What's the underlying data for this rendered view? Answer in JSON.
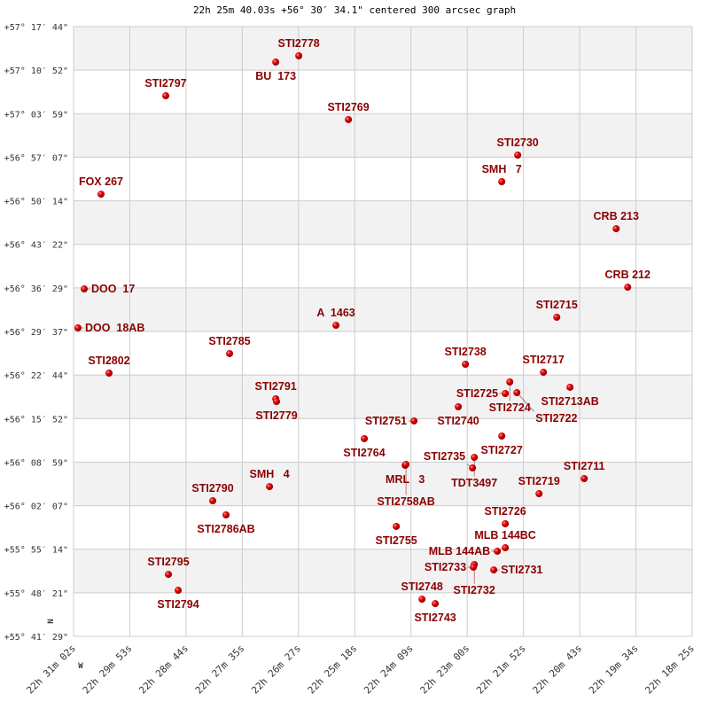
{
  "chart_data": {
    "type": "scatter",
    "title": "22h 25m 40.03s +56° 30′ 34.1\" centered 300 arcsec graph",
    "x_axis": {
      "quantity": "right ascension",
      "range": [
        "22 31 02",
        "22 18 25"
      ],
      "direction": "decreasing to the right",
      "tick_labels": [
        "22h 31m 02s",
        "22h 29m 53s",
        "22h 28m 44s",
        "22h 27m 35s",
        "22h 26m 27s",
        "22h 25m 18s",
        "22h 24m 09s",
        "22h 23m 00s",
        "22h 21m 52s",
        "22h 20m 43s",
        "22h 19m 34s",
        "22h 18m 25s"
      ]
    },
    "y_axis": {
      "quantity": "declination",
      "range": [
        "+55 41 29",
        "+57 17 44"
      ],
      "tick_labels": [
        "+57° 17′ 44\"",
        "+57° 10′ 52\"",
        "+57° 03′ 59\"",
        "+56° 57′ 07\"",
        "+56° 50′ 14\"",
        "+56° 43′ 22\"",
        "+56° 36′ 29\"",
        "+56° 29′ 37\"",
        "+56° 22′ 44\"",
        "+56° 15′ 52\"",
        "+56° 08′ 59\"",
        "+56° 02′ 07\"",
        "+55° 55′ 14\"",
        "+55° 48′ 21\"",
        "+55° 41′ 29\""
      ]
    },
    "compass": {
      "north": "N",
      "west": "W"
    },
    "grid": true,
    "banded_rows": true,
    "colors": {
      "label": "#8b0000",
      "point": "#e00000",
      "band": "#f2f2f2",
      "grid": "#cccccc"
    },
    "points": [
      {
        "name": "BU  173",
        "ra": "22 26 54.6",
        "dec": "+57 12 08"
      },
      {
        "name": "STI2778",
        "ra": "22 26 26.4",
        "dec": "+57 13 07"
      },
      {
        "name": "STI2797",
        "ra": "22 29 09.2",
        "dec": "+57 06 49"
      },
      {
        "name": "STI2769",
        "ra": "22 25 25.7",
        "dec": "+57 03 03"
      },
      {
        "name": "STI2730",
        "ra": "22 21 58.5",
        "dec": "+56 57 27"
      },
      {
        "name": "SMH   7",
        "ra": "22 22 18.0",
        "dec": "+56 53 15"
      },
      {
        "name": "FOX 267",
        "ra": "22 30 28.4",
        "dec": "+56 51 17"
      },
      {
        "name": "CRB 213",
        "ra": "22 19 58.0",
        "dec": "+56 45 50"
      },
      {
        "name": "CRB 212",
        "ra": "22 19 43.9",
        "dec": "+56 36 36"
      },
      {
        "name": "DOO  17",
        "ra": "22 30 49.0",
        "dec": "+56 36 19"
      },
      {
        "name": "STI2715",
        "ra": "22 21 10.7",
        "dec": "+56 31 51"
      },
      {
        "name": "DOO  18AB",
        "ra": "22 30 56.6",
        "dec": "+56 30 10"
      },
      {
        "name": "A  1463",
        "ra": "22 25 40.9",
        "dec": "+56 30 35"
      },
      {
        "name": "STI2785",
        "ra": "22 27 51.1",
        "dec": "+56 26 07"
      },
      {
        "name": "STI2738",
        "ra": "22 23 02.5",
        "dec": "+56 24 26"
      },
      {
        "name": "STI2717",
        "ra": "22 21 27.0",
        "dec": "+56 23 10"
      },
      {
        "name": "STI2802",
        "ra": "22 30 18.6",
        "dec": "+56 23 02"
      },
      {
        "name": "STI2713AB",
        "ra": "22 20 54.5",
        "dec": "+56 20 48"
      },
      {
        "name": "STI2724",
        "ra": "22 22 08.2",
        "dec": "+56 21 38"
      },
      {
        "name": "STI2725",
        "ra": "22 22 13.7",
        "dec": "+56 19 49"
      },
      {
        "name": "STI2722",
        "ra": "22 21 59.5",
        "dec": "+56 19 57"
      },
      {
        "name": "STI2791",
        "ra": "22 26 54.6",
        "dec": "+56 18 59"
      },
      {
        "name": "STI2779",
        "ra": "22 26 53.6",
        "dec": "+56 18 33"
      },
      {
        "name": "STI2740",
        "ra": "22 23 11.2",
        "dec": "+56 17 43"
      },
      {
        "name": "STI2751",
        "ra": "22 24 05.4",
        "dec": "+56 15 29"
      },
      {
        "name": "STI2727",
        "ra": "22 22 18.0",
        "dec": "+56 13 06"
      },
      {
        "name": "STI2764",
        "ra": "22 25 06.2",
        "dec": "+56 12 41"
      },
      {
        "name": "TDT3497",
        "ra": "22 22 51.6",
        "dec": "+56 09 44"
      },
      {
        "name": "MRL   3",
        "ra": "22 24 16.2",
        "dec": "+56 08 29"
      },
      {
        "name": "STI2758AB",
        "ra": "22 24 15.2",
        "dec": "+56 08 37"
      },
      {
        "name": "STI2735",
        "ra": "22 22 53.8",
        "dec": "+56 08 04"
      },
      {
        "name": "STI2711",
        "ra": "22 20 37.1",
        "dec": "+56 06 23"
      },
      {
        "name": "SMH   4",
        "ra": "22 27 02.2",
        "dec": "+56 05 07"
      },
      {
        "name": "STI2719",
        "ra": "22 21 32.4",
        "dec": "+56 04 00"
      },
      {
        "name": "STI2790",
        "ra": "22 28 11.7",
        "dec": "+56 02 53"
      },
      {
        "name": "STI2786AB",
        "ra": "22 27 55.4",
        "dec": "+56 00 39"
      },
      {
        "name": "STI2726",
        "ra": "22 22 13.7",
        "dec": "+55 59 15"
      },
      {
        "name": "STI2755",
        "ra": "22 24 27.1",
        "dec": "+55 58 50"
      },
      {
        "name": "MLB 144BC",
        "ra": "22 22 13.7",
        "dec": "+55 55 28"
      },
      {
        "name": "MLB 144AB",
        "ra": "22 22 23.4",
        "dec": "+55 54 55"
      },
      {
        "name": "STI2732",
        "ra": "22 22 51.6",
        "dec": "+55 52 49"
      },
      {
        "name": "STI2733",
        "ra": "22 22 52.7",
        "dec": "+55 52 24"
      },
      {
        "name": "STI2731",
        "ra": "22 22 27.8",
        "dec": "+55 51 58"
      },
      {
        "name": "STI2795",
        "ra": "22 29 05.9",
        "dec": "+55 51 16"
      },
      {
        "name": "STI2794",
        "ra": "22 28 54.0",
        "dec": "+55 48 45"
      },
      {
        "name": "STI2748",
        "ra": "22 23 55.6",
        "dec": "+55 47 21"
      },
      {
        "name": "STI2743",
        "ra": "22 23 39.4",
        "dec": "+55 46 39"
      }
    ]
  }
}
